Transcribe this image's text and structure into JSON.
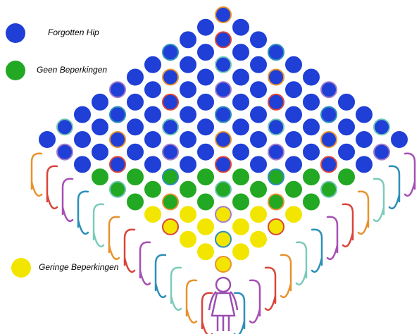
{
  "legend": [
    {
      "label": "Forgotten Hip",
      "color": "#1f3fd6"
    },
    {
      "label": "Geen Beperkingen",
      "color": "#22a822"
    },
    {
      "label": "Geringe Beperkingen",
      "color": "#f2e600"
    }
  ]
}
